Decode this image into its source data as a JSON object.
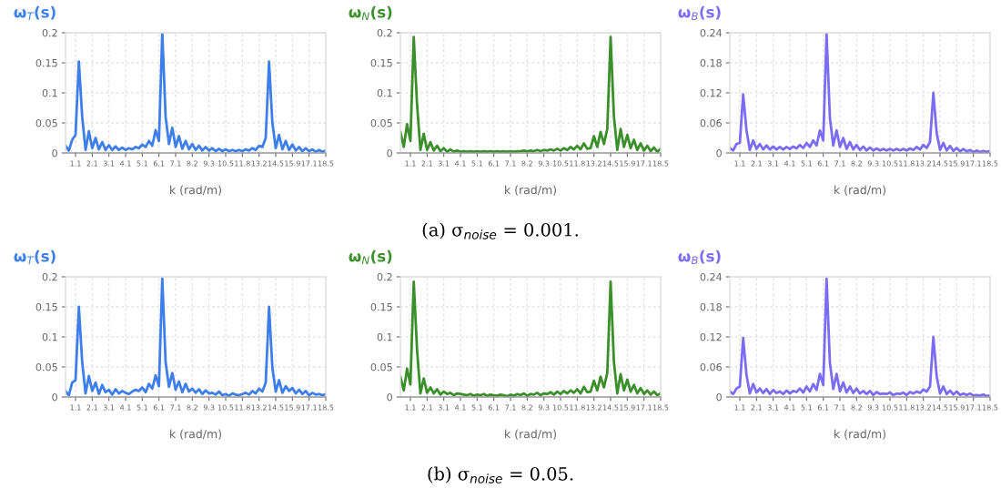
{
  "chart_data": [
    {
      "type": "line",
      "title": "ω$_{T}$(s)",
      "xlabel": "k (rad/m)",
      "categories": [
        null,
        null,
        null,
        "1.1",
        null,
        null,
        null,
        null,
        "2.1",
        null,
        null,
        null,
        null,
        "3.1",
        null,
        null,
        null,
        null,
        "4.1",
        null,
        null,
        null,
        null,
        "5.1",
        null,
        null,
        null,
        null,
        "6.1",
        null,
        null,
        null,
        null,
        "7.1",
        null,
        null,
        null,
        null,
        "8.2",
        null,
        null,
        null,
        null,
        "9.3",
        null,
        null,
        null,
        null,
        "10.5",
        null,
        null,
        null,
        null,
        "11.8",
        null,
        null,
        null,
        null,
        "13.2",
        null,
        null,
        null,
        null,
        "14.5",
        null,
        null,
        null,
        null,
        "15.9",
        null,
        null,
        null,
        null,
        "17.1",
        null,
        null,
        null,
        null,
        "18.5"
      ],
      "ylim": [
        0,
        0.2
      ],
      "yticks": [
        0,
        0.05,
        0.1,
        0.15,
        0.2
      ],
      "grid": true,
      "series": [
        {
          "color": "#3d7eea",
          "values": [
            0.012,
            0.004,
            0.022,
            0.03,
            0.152,
            0.06,
            0.005,
            0.036,
            0.008,
            0.025,
            0.006,
            0.018,
            0.005,
            0.013,
            0.005,
            0.011,
            0.005,
            0.009,
            0.005,
            0.008,
            0.006,
            0.01,
            0.008,
            0.014,
            0.01,
            0.02,
            0.012,
            0.038,
            0.02,
            0.2,
            0.06,
            0.015,
            0.042,
            0.01,
            0.028,
            0.007,
            0.02,
            0.006,
            0.015,
            0.005,
            0.012,
            0.004,
            0.01,
            0.004,
            0.008,
            0.003,
            0.007,
            0.003,
            0.006,
            0.003,
            0.005,
            0.003,
            0.005,
            0.003,
            0.006,
            0.004,
            0.008,
            0.005,
            0.012,
            0.01,
            0.025,
            0.152,
            0.05,
            0.008,
            0.03,
            0.006,
            0.02,
            0.005,
            0.014,
            0.004,
            0.01,
            0.003,
            0.008,
            0.003,
            0.006,
            0.002,
            0.005,
            0.002,
            0.004
          ]
        }
      ]
    },
    {
      "type": "line",
      "title": "ω$_{N}$(s)",
      "xlabel": "k (rad/m)",
      "categories": [
        null,
        null,
        null,
        "1.1",
        null,
        null,
        null,
        null,
        "2.1",
        null,
        null,
        null,
        null,
        "3.1",
        null,
        null,
        null,
        null,
        "4.1",
        null,
        null,
        null,
        null,
        "5.1",
        null,
        null,
        null,
        null,
        "6.1",
        null,
        null,
        null,
        null,
        "7.1",
        null,
        null,
        null,
        null,
        "8.2",
        null,
        null,
        null,
        null,
        "9.3",
        null,
        null,
        null,
        null,
        "10.5",
        null,
        null,
        null,
        null,
        "11.8",
        null,
        null,
        null,
        null,
        "13.2",
        null,
        null,
        null,
        null,
        "14.5",
        null,
        null,
        null,
        null,
        "15.9",
        null,
        null,
        null,
        null,
        "17.1",
        null,
        null,
        null,
        null,
        "18.5"
      ],
      "ylim": [
        0,
        0.2
      ],
      "yticks": [
        0,
        0.05,
        0.1,
        0.15,
        0.2
      ],
      "grid": true,
      "annotations": [
        "(a) σ$_{noise}$ = 0.001."
      ],
      "series": [
        {
          "color": "#3a8f2a",
          "values": [
            0.035,
            0.01,
            0.048,
            0.02,
            0.193,
            0.08,
            0.005,
            0.032,
            0.005,
            0.018,
            0.004,
            0.012,
            0.003,
            0.008,
            0.002,
            0.006,
            0.002,
            0.004,
            0.002,
            0.003,
            0.002,
            0.003,
            0.002,
            0.003,
            0.002,
            0.003,
            0.002,
            0.003,
            0.002,
            0.003,
            0.002,
            0.003,
            0.002,
            0.003,
            0.002,
            0.003,
            0.003,
            0.004,
            0.003,
            0.004,
            0.003,
            0.005,
            0.003,
            0.005,
            0.004,
            0.006,
            0.004,
            0.007,
            0.004,
            0.008,
            0.005,
            0.01,
            0.006,
            0.012,
            0.006,
            0.016,
            0.007,
            0.008,
            0.028,
            0.01,
            0.035,
            0.015,
            0.04,
            0.193,
            0.06,
            0.005,
            0.04,
            0.01,
            0.03,
            0.008,
            0.022,
            0.005,
            0.016,
            0.004,
            0.012,
            0.003,
            0.009,
            0.002,
            0.007
          ]
        }
      ]
    },
    {
      "type": "line",
      "title": "ω$_{B}$(s)",
      "xlabel": "k (rad/m)",
      "categories": [
        null,
        null,
        null,
        "1.1",
        null,
        null,
        null,
        null,
        "2.1",
        null,
        null,
        null,
        null,
        "3.1",
        null,
        null,
        null,
        null,
        "4.1",
        null,
        null,
        null,
        null,
        "5.1",
        null,
        null,
        null,
        null,
        "6.1",
        null,
        null,
        null,
        null,
        "7.1",
        null,
        null,
        null,
        null,
        "8.2",
        null,
        null,
        null,
        null,
        "9.3",
        null,
        null,
        null,
        null,
        "10.5",
        null,
        null,
        null,
        null,
        "11.8",
        null,
        null,
        null,
        null,
        "13.2",
        null,
        null,
        null,
        null,
        "14.5",
        null,
        null,
        null,
        null,
        "15.9",
        null,
        null,
        null,
        null,
        "17.1",
        null,
        null,
        null,
        null,
        "18.5"
      ],
      "ylim": [
        0,
        0.24
      ],
      "yticks": [
        0,
        0.06,
        0.12,
        0.18,
        0.24
      ],
      "grid": true,
      "series": [
        {
          "color": "#7b6cf6",
          "values": [
            0.01,
            0.005,
            0.018,
            0.02,
            0.117,
            0.045,
            0.006,
            0.025,
            0.008,
            0.018,
            0.007,
            0.015,
            0.007,
            0.013,
            0.007,
            0.012,
            0.007,
            0.012,
            0.008,
            0.013,
            0.009,
            0.016,
            0.01,
            0.02,
            0.012,
            0.025,
            0.015,
            0.045,
            0.025,
            0.238,
            0.07,
            0.015,
            0.045,
            0.012,
            0.03,
            0.008,
            0.022,
            0.007,
            0.016,
            0.006,
            0.013,
            0.005,
            0.011,
            0.005,
            0.009,
            0.005,
            0.008,
            0.005,
            0.008,
            0.005,
            0.008,
            0.005,
            0.008,
            0.005,
            0.009,
            0.006,
            0.012,
            0.007,
            0.016,
            0.01,
            0.022,
            0.12,
            0.04,
            0.006,
            0.02,
            0.005,
            0.014,
            0.004,
            0.01,
            0.003,
            0.008,
            0.003,
            0.006,
            0.002,
            0.005,
            0.002,
            0.004,
            0.002,
            0.004
          ]
        }
      ]
    },
    {
      "type": "line",
      "title": "ω$_{T}$(s)",
      "xlabel": "k (rad/m)",
      "categories": [
        null,
        null,
        null,
        "1.1",
        null,
        null,
        null,
        null,
        "2.1",
        null,
        null,
        null,
        null,
        "3.1",
        null,
        null,
        null,
        null,
        "4.1",
        null,
        null,
        null,
        null,
        "5.1",
        null,
        null,
        null,
        null,
        "6.1",
        null,
        null,
        null,
        null,
        "7.1",
        null,
        null,
        null,
        null,
        "8.2",
        null,
        null,
        null,
        null,
        "9.3",
        null,
        null,
        null,
        null,
        "10.5",
        null,
        null,
        null,
        null,
        "11.8",
        null,
        null,
        null,
        null,
        "13.2",
        null,
        null,
        null,
        null,
        "14.5",
        null,
        null,
        null,
        null,
        "15.9",
        null,
        null,
        null,
        null,
        "17.1",
        null,
        null,
        null,
        null,
        "18.5"
      ],
      "ylim": [
        0,
        0.2
      ],
      "yticks": [
        0,
        0.05,
        0.1,
        0.15,
        0.2
      ],
      "grid": true,
      "series": [
        {
          "color": "#3d7eea",
          "values": [
            0.01,
            0.003,
            0.024,
            0.028,
            0.15,
            0.058,
            0.006,
            0.035,
            0.01,
            0.024,
            0.005,
            0.02,
            0.008,
            0.012,
            0.004,
            0.013,
            0.006,
            0.01,
            0.007,
            0.005,
            0.009,
            0.012,
            0.01,
            0.016,
            0.008,
            0.022,
            0.014,
            0.036,
            0.018,
            0.197,
            0.058,
            0.017,
            0.04,
            0.012,
            0.026,
            0.008,
            0.022,
            0.009,
            0.014,
            0.007,
            0.013,
            0.005,
            0.011,
            0.006,
            0.007,
            0.004,
            0.009,
            0.003,
            0.005,
            0.002,
            0.006,
            0.004,
            0.003,
            0.005,
            0.007,
            0.004,
            0.01,
            0.006,
            0.014,
            0.009,
            0.024,
            0.15,
            0.048,
            0.009,
            0.028,
            0.007,
            0.018,
            0.01,
            0.015,
            0.006,
            0.012,
            0.005,
            0.01,
            0.003,
            0.007,
            0.004,
            0.005,
            0.003,
            0.005
          ]
        }
      ]
    },
    {
      "type": "line",
      "title": "ω$_{N}$(s)",
      "xlabel": "k (rad/m)",
      "categories": [
        null,
        null,
        null,
        "1.1",
        null,
        null,
        null,
        null,
        "2.1",
        null,
        null,
        null,
        null,
        "3.1",
        null,
        null,
        null,
        null,
        "4.1",
        null,
        null,
        null,
        null,
        "5.1",
        null,
        null,
        null,
        null,
        "6.1",
        null,
        null,
        null,
        null,
        "7.1",
        null,
        null,
        null,
        null,
        "8.2",
        null,
        null,
        null,
        null,
        "9.3",
        null,
        null,
        null,
        null,
        "10.5",
        null,
        null,
        null,
        null,
        "11.8",
        null,
        null,
        null,
        null,
        "13.2",
        null,
        null,
        null,
        null,
        "14.5",
        null,
        null,
        null,
        null,
        "15.9",
        null,
        null,
        null,
        null,
        "17.1",
        null,
        null,
        null,
        null,
        "18.5"
      ],
      "ylim": [
        0,
        0.2
      ],
      "yticks": [
        0,
        0.05,
        0.1,
        0.15,
        0.2
      ],
      "grid": true,
      "annotations": [
        "(b) σ$_{noise}$ = 0.05."
      ],
      "series": [
        {
          "color": "#3a8f2a",
          "values": [
            0.034,
            0.011,
            0.047,
            0.021,
            0.192,
            0.078,
            0.006,
            0.031,
            0.007,
            0.016,
            0.006,
            0.013,
            0.004,
            0.009,
            0.005,
            0.007,
            0.003,
            0.006,
            0.005,
            0.004,
            0.003,
            0.005,
            0.002,
            0.004,
            0.003,
            0.005,
            0.002,
            0.004,
            0.003,
            0.002,
            0.004,
            0.003,
            0.001,
            0.004,
            0.002,
            0.005,
            0.003,
            0.006,
            0.002,
            0.005,
            0.004,
            0.007,
            0.003,
            0.006,
            0.005,
            0.008,
            0.004,
            0.009,
            0.005,
            0.01,
            0.006,
            0.011,
            0.007,
            0.013,
            0.006,
            0.017,
            0.008,
            0.009,
            0.027,
            0.011,
            0.034,
            0.016,
            0.04,
            0.192,
            0.058,
            0.006,
            0.038,
            0.011,
            0.029,
            0.009,
            0.02,
            0.006,
            0.015,
            0.005,
            0.011,
            0.004,
            0.009,
            0.003,
            0.006
          ]
        }
      ]
    },
    {
      "type": "line",
      "title": "ω$_{B}$(s)",
      "xlabel": "k (rad/m)",
      "categories": [
        null,
        null,
        null,
        "1.1",
        null,
        null,
        null,
        null,
        "2.1",
        null,
        null,
        null,
        null,
        "3.1",
        null,
        null,
        null,
        null,
        "4.1",
        null,
        null,
        null,
        null,
        "5.1",
        null,
        null,
        null,
        null,
        "6.1",
        null,
        null,
        null,
        null,
        "7.1",
        null,
        null,
        null,
        null,
        "8.2",
        null,
        null,
        null,
        null,
        "9.3",
        null,
        null,
        null,
        null,
        "10.5",
        null,
        null,
        null,
        null,
        "11.8",
        null,
        null,
        null,
        null,
        "13.2",
        null,
        null,
        null,
        null,
        "14.5",
        null,
        null,
        null,
        null,
        "15.9",
        null,
        null,
        null,
        null,
        "17.1",
        null,
        null,
        null,
        null,
        "18.5"
      ],
      "ylim": [
        0,
        0.24
      ],
      "yticks": [
        0,
        0.06,
        0.12,
        0.18,
        0.24
      ],
      "grid": true,
      "series": [
        {
          "color": "#7b6cf6",
          "values": [
            0.011,
            0.006,
            0.017,
            0.021,
            0.118,
            0.044,
            0.007,
            0.026,
            0.009,
            0.017,
            0.008,
            0.016,
            0.006,
            0.014,
            0.008,
            0.011,
            0.006,
            0.013,
            0.007,
            0.012,
            0.01,
            0.017,
            0.009,
            0.021,
            0.011,
            0.026,
            0.014,
            0.046,
            0.024,
            0.236,
            0.068,
            0.016,
            0.046,
            0.011,
            0.029,
            0.009,
            0.021,
            0.008,
            0.017,
            0.007,
            0.012,
            0.006,
            0.012,
            0.004,
            0.01,
            0.006,
            0.007,
            0.006,
            0.009,
            0.004,
            0.007,
            0.006,
            0.009,
            0.004,
            0.01,
            0.007,
            0.011,
            0.008,
            0.015,
            0.011,
            0.021,
            0.12,
            0.041,
            0.007,
            0.021,
            0.006,
            0.013,
            0.005,
            0.011,
            0.004,
            0.007,
            0.004,
            0.007,
            0.003,
            0.004,
            0.003,
            0.005,
            0.002,
            0.003
          ]
        }
      ]
    }
  ]
}
